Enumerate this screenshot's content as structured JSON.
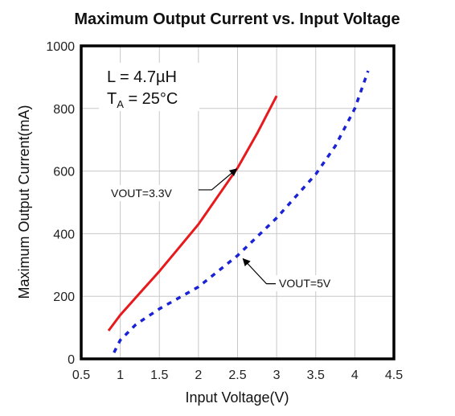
{
  "chart_data": {
    "type": "line",
    "title": "Maximum Output Current vs. Input Voltage",
    "xlabel": "Input Voltage(V)",
    "ylabel": "Maximum Output Current(mA)",
    "xlim": [
      0.5,
      4.5
    ],
    "ylim": [
      0,
      1000
    ],
    "xticks": [
      "0.5",
      "1",
      "1.5",
      "2",
      "2.5",
      "3",
      "3.5",
      "4",
      "4.5"
    ],
    "yticks": [
      "0",
      "200",
      "400",
      "600",
      "800",
      "1000"
    ],
    "grid": true,
    "annotation": {
      "line1": "L = 4.7µH",
      "line2_main": "T",
      "line2_sub": "A",
      "line2_rest": " = 25°C"
    },
    "series": [
      {
        "name": "VOUT=3.3V",
        "color": "#e8191c",
        "style": "solid",
        "x": [
          0.85,
          1.0,
          1.25,
          1.5,
          1.75,
          2.0,
          2.25,
          2.5,
          2.75,
          3.0
        ],
        "y": [
          90,
          140,
          210,
          280,
          355,
          430,
          520,
          610,
          720,
          840
        ]
      },
      {
        "name": "VOUT=5V",
        "color": "#1a22d6",
        "style": "dotted",
        "x": [
          0.92,
          1.0,
          1.2,
          1.5,
          2.0,
          2.5,
          3.0,
          3.5,
          3.75,
          4.0,
          4.17
        ],
        "y": [
          20,
          60,
          110,
          160,
          230,
          330,
          450,
          590,
          680,
          800,
          920
        ]
      }
    ]
  }
}
